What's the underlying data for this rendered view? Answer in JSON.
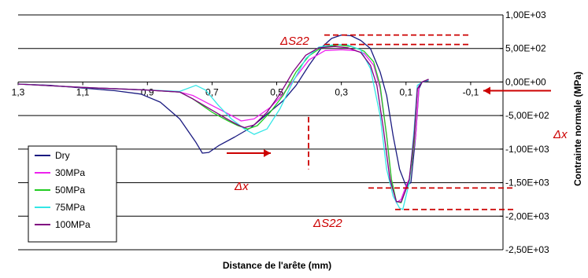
{
  "chart_data": {
    "type": "line",
    "xlabel": "Distance de l'arête (mm)",
    "ylabel": "Contrainte normale (MPa)",
    "xlim": [
      1.3,
      -0.2
    ],
    "ylim": [
      -2500,
      1000
    ],
    "x_reversed": true,
    "x_ticks": [
      {
        "value": 1.3,
        "label": "1,3"
      },
      {
        "value": 1.1,
        "label": "1,1"
      },
      {
        "value": 0.9,
        "label": "0,9"
      },
      {
        "value": 0.7,
        "label": "0,7"
      },
      {
        "value": 0.5,
        "label": "0,5"
      },
      {
        "value": 0.3,
        "label": "0,3"
      },
      {
        "value": 0.1,
        "label": "0,1"
      },
      {
        "value": -0.1,
        "label": "-0,1"
      }
    ],
    "y_ticks": [
      {
        "value": 1000,
        "label": "1,00E+03"
      },
      {
        "value": 500,
        "label": "5,00E+02"
      },
      {
        "value": 0,
        "label": "0,00E+00"
      },
      {
        "value": -500,
        "label": "-5,00E+02"
      },
      {
        "value": -1000,
        "label": "-1,00E+03"
      },
      {
        "value": -1500,
        "label": "-1,50E+03"
      },
      {
        "value": -2000,
        "label": "-2,00E+03"
      },
      {
        "value": -2500,
        "label": "-2,50E+03"
      }
    ],
    "y_axis_position": "right",
    "grid": "horizontal",
    "legend_placement": "left",
    "series": [
      {
        "name": "Dry",
        "color": "#1a1a80",
        "points": [
          [
            1.3,
            -30
          ],
          [
            1.2,
            -50
          ],
          [
            1.1,
            -90
          ],
          [
            1.0,
            -130
          ],
          [
            0.92,
            -180
          ],
          [
            0.86,
            -300
          ],
          [
            0.8,
            -550
          ],
          [
            0.75,
            -900
          ],
          [
            0.73,
            -1060
          ],
          [
            0.71,
            -1050
          ],
          [
            0.68,
            -950
          ],
          [
            0.63,
            -820
          ],
          [
            0.58,
            -680
          ],
          [
            0.55,
            -560
          ],
          [
            0.52,
            -440
          ],
          [
            0.48,
            -280
          ],
          [
            0.44,
            -50
          ],
          [
            0.4,
            250
          ],
          [
            0.36,
            520
          ],
          [
            0.33,
            650
          ],
          [
            0.3,
            700
          ],
          [
            0.27,
            690
          ],
          [
            0.24,
            620
          ],
          [
            0.21,
            500
          ],
          [
            0.18,
            150
          ],
          [
            0.16,
            -200
          ],
          [
            0.14,
            -800
          ],
          [
            0.12,
            -1300
          ],
          [
            0.1,
            -1550
          ],
          [
            0.085,
            -1500
          ],
          [
            0.07,
            -800
          ],
          [
            0.06,
            -100
          ],
          [
            0.05,
            0
          ],
          [
            0.03,
            20
          ]
        ]
      },
      {
        "name": "30MPa",
        "color": "#ee22ee",
        "points": [
          [
            1.3,
            -30
          ],
          [
            1.1,
            -80
          ],
          [
            0.9,
            -120
          ],
          [
            0.8,
            -150
          ],
          [
            0.76,
            -200
          ],
          [
            0.7,
            -350
          ],
          [
            0.64,
            -500
          ],
          [
            0.61,
            -580
          ],
          [
            0.57,
            -550
          ],
          [
            0.52,
            -380
          ],
          [
            0.48,
            -180
          ],
          [
            0.44,
            80
          ],
          [
            0.4,
            330
          ],
          [
            0.35,
            470
          ],
          [
            0.3,
            480
          ],
          [
            0.26,
            470
          ],
          [
            0.23,
            430
          ],
          [
            0.2,
            250
          ],
          [
            0.18,
            -100
          ],
          [
            0.16,
            -800
          ],
          [
            0.145,
            -1500
          ],
          [
            0.13,
            -1800
          ],
          [
            0.115,
            -1750
          ],
          [
            0.1,
            -1550
          ],
          [
            0.09,
            -1450
          ],
          [
            0.07,
            -800
          ],
          [
            0.06,
            -50
          ],
          [
            0.05,
            0
          ],
          [
            0.03,
            40
          ]
        ]
      },
      {
        "name": "50MPa",
        "color": "#22cc22",
        "points": [
          [
            1.3,
            -30
          ],
          [
            1.1,
            -80
          ],
          [
            0.9,
            -120
          ],
          [
            0.8,
            -150
          ],
          [
            0.76,
            -250
          ],
          [
            0.7,
            -450
          ],
          [
            0.65,
            -580
          ],
          [
            0.62,
            -650
          ],
          [
            0.59,
            -700
          ],
          [
            0.56,
            -650
          ],
          [
            0.52,
            -450
          ],
          [
            0.48,
            -200
          ],
          [
            0.44,
            150
          ],
          [
            0.4,
            390
          ],
          [
            0.36,
            520
          ],
          [
            0.31,
            550
          ],
          [
            0.27,
            530
          ],
          [
            0.23,
            460
          ],
          [
            0.2,
            300
          ],
          [
            0.18,
            -50
          ],
          [
            0.16,
            -800
          ],
          [
            0.145,
            -1450
          ],
          [
            0.13,
            -1780
          ],
          [
            0.115,
            -1800
          ],
          [
            0.1,
            -1600
          ],
          [
            0.09,
            -1500
          ],
          [
            0.075,
            -900
          ],
          [
            0.065,
            -100
          ],
          [
            0.05,
            0
          ],
          [
            0.03,
            40
          ]
        ]
      },
      {
        "name": "75MPa",
        "color": "#33e6e6",
        "points": [
          [
            1.3,
            -30
          ],
          [
            1.1,
            -80
          ],
          [
            0.9,
            -120
          ],
          [
            0.8,
            -140
          ],
          [
            0.75,
            -50
          ],
          [
            0.72,
            -120
          ],
          [
            0.68,
            -350
          ],
          [
            0.64,
            -550
          ],
          [
            0.6,
            -700
          ],
          [
            0.57,
            -780
          ],
          [
            0.53,
            -700
          ],
          [
            0.49,
            -400
          ],
          [
            0.45,
            0
          ],
          [
            0.41,
            350
          ],
          [
            0.37,
            520
          ],
          [
            0.32,
            560
          ],
          [
            0.28,
            550
          ],
          [
            0.24,
            480
          ],
          [
            0.21,
            200
          ],
          [
            0.18,
            -500
          ],
          [
            0.16,
            -1300
          ],
          [
            0.14,
            -1700
          ],
          [
            0.12,
            -1880
          ],
          [
            0.11,
            -1900
          ],
          [
            0.1,
            -1700
          ],
          [
            0.09,
            -1500
          ],
          [
            0.075,
            -700
          ],
          [
            0.065,
            -50
          ],
          [
            0.05,
            0
          ],
          [
            0.03,
            30
          ]
        ]
      },
      {
        "name": "100MPa",
        "color": "#800080",
        "points": [
          [
            1.3,
            -30
          ],
          [
            1.1,
            -80
          ],
          [
            0.9,
            -120
          ],
          [
            0.8,
            -150
          ],
          [
            0.76,
            -250
          ],
          [
            0.7,
            -420
          ],
          [
            0.65,
            -560
          ],
          [
            0.62,
            -640
          ],
          [
            0.6,
            -680
          ],
          [
            0.57,
            -640
          ],
          [
            0.53,
            -450
          ],
          [
            0.49,
            -180
          ],
          [
            0.45,
            150
          ],
          [
            0.41,
            400
          ],
          [
            0.37,
            510
          ],
          [
            0.32,
            530
          ],
          [
            0.28,
            510
          ],
          [
            0.24,
            440
          ],
          [
            0.21,
            250
          ],
          [
            0.19,
            -50
          ],
          [
            0.17,
            -700
          ],
          [
            0.15,
            -1450
          ],
          [
            0.13,
            -1780
          ],
          [
            0.115,
            -1790
          ],
          [
            0.1,
            -1600
          ],
          [
            0.09,
            -1450
          ],
          [
            0.075,
            -800
          ],
          [
            0.065,
            -100
          ],
          [
            0.05,
            0
          ],
          [
            0.03,
            40
          ]
        ]
      }
    ],
    "annotations": [
      {
        "text": "ΔS22",
        "color": "#cc0000"
      },
      {
        "text": "ΔS22",
        "color": "#cc0000"
      },
      {
        "text": "Δx",
        "color": "#cc0000"
      },
      {
        "text": "Δx",
        "color": "#cc0000"
      }
    ]
  }
}
